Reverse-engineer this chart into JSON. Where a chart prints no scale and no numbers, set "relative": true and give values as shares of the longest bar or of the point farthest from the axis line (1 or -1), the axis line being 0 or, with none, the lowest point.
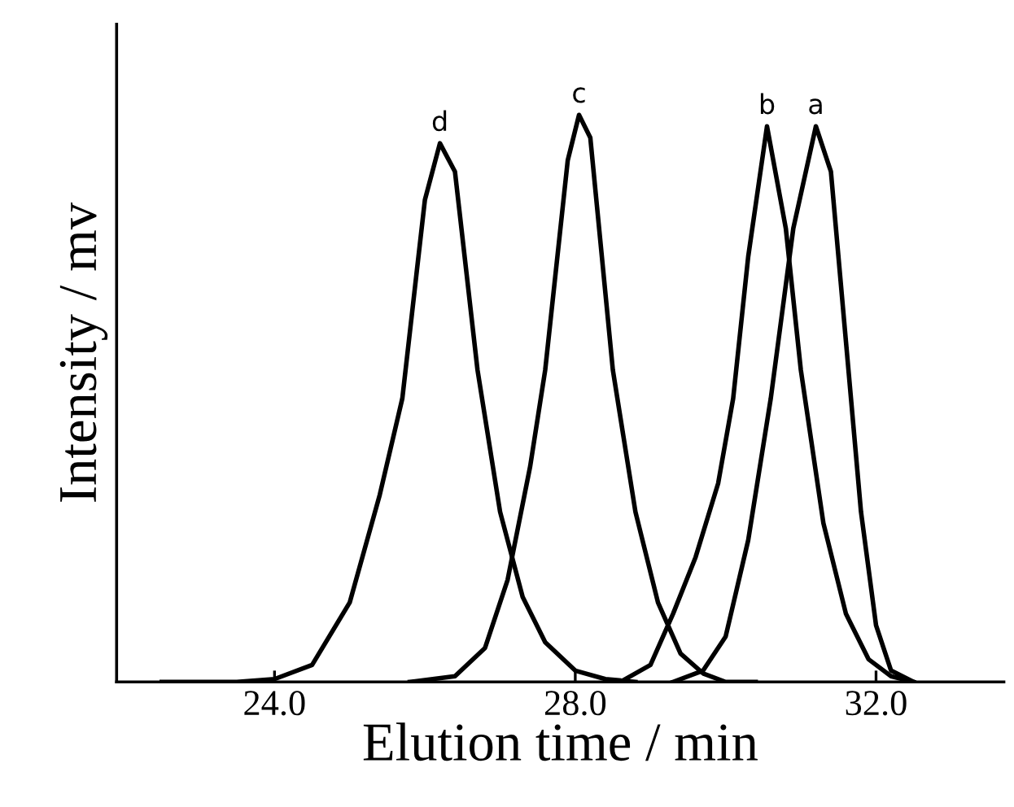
{
  "chart_data": {
    "type": "line",
    "relative": true,
    "xlabel": "Elution time / min",
    "ylabel": "Intensity / mv",
    "xlim": [
      21.9,
      33.7
    ],
    "xticks": [
      {
        "value": 24,
        "label": "24.0"
      },
      {
        "value": 28,
        "label": "28.0"
      },
      {
        "value": 32,
        "label": "32.0"
      }
    ],
    "grid": false,
    "legend": false,
    "marker": "none",
    "line_style": "solid",
    "series": [
      {
        "color": "#000000",
        "x": [
          22.5,
          23.5,
          24.0,
          24.5,
          25.0,
          25.4,
          25.7,
          26.0,
          26.2,
          26.4,
          26.7,
          27.0,
          27.3,
          27.6,
          28.0,
          28.4,
          28.8
        ],
        "values": [
          0,
          0,
          0.005,
          0.03,
          0.14,
          0.33,
          0.5,
          0.85,
          0.95,
          0.9,
          0.55,
          0.3,
          0.15,
          0.07,
          0.02,
          0.005,
          0
        ]
      },
      {
        "color": "#000000",
        "x": [
          25.8,
          26.4,
          26.8,
          27.1,
          27.4,
          27.6,
          27.9,
          28.05,
          28.2,
          28.5,
          28.8,
          29.1,
          29.4,
          29.7,
          30.0,
          30.4
        ],
        "values": [
          0,
          0.01,
          0.06,
          0.18,
          0.38,
          0.55,
          0.92,
          1.0,
          0.96,
          0.55,
          0.3,
          0.14,
          0.05,
          0.015,
          0,
          0
        ]
      },
      {
        "color": "#000000",
        "x": [
          28.6,
          29.0,
          29.3,
          29.6,
          29.9,
          30.1,
          30.3,
          30.55,
          30.8,
          31.0,
          31.3,
          31.6,
          31.9,
          32.2,
          32.5
        ],
        "values": [
          0,
          0.03,
          0.12,
          0.22,
          0.35,
          0.5,
          0.75,
          0.98,
          0.8,
          0.55,
          0.28,
          0.12,
          0.04,
          0.01,
          0
        ]
      },
      {
        "color": "#000000",
        "x": [
          29.3,
          29.7,
          30.0,
          30.3,
          30.6,
          30.9,
          31.2,
          31.4,
          31.6,
          31.8,
          32.0,
          32.2,
          32.5
        ],
        "values": [
          0,
          0.02,
          0.08,
          0.25,
          0.5,
          0.8,
          0.98,
          0.9,
          0.6,
          0.3,
          0.1,
          0.02,
          0
        ]
      }
    ],
    "annotations": [
      {
        "text": "d",
        "x": 26.2,
        "y": 0.95
      },
      {
        "text": "c",
        "x": 28.05,
        "y": 1.0
      },
      {
        "text": "b",
        "x": 30.55,
        "y": 0.98
      },
      {
        "text": "a",
        "x": 31.2,
        "y": 0.98
      }
    ]
  }
}
